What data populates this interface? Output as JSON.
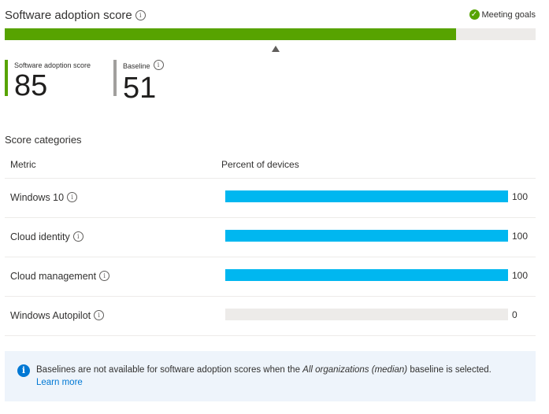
{
  "header": {
    "title": "Software adoption score",
    "status_label": "Meeting goals",
    "score_percent": 85,
    "baseline_percent": 51
  },
  "kpis": {
    "score_label": "Software adoption score",
    "score_value": "85",
    "baseline_label": "Baseline",
    "baseline_value": "51"
  },
  "categories": {
    "title": "Score categories",
    "columns": [
      "Metric",
      "Percent of devices"
    ],
    "rows": [
      {
        "metric": "Windows 10",
        "percent": 100,
        "percent_label": "100"
      },
      {
        "metric": "Cloud identity",
        "percent": 100,
        "percent_label": "100"
      },
      {
        "metric": "Cloud management",
        "percent": 100,
        "percent_label": "100"
      },
      {
        "metric": "Windows Autopilot",
        "percent": 0,
        "percent_label": "0"
      }
    ]
  },
  "banner": {
    "text_before": "Baselines are not available for software adoption scores when the ",
    "text_italic": "All organizations (median)",
    "text_after": " baseline is selected.",
    "link": "Learn more"
  },
  "colors": {
    "score_fill": "#57a300",
    "bar_fill": "#00b7f0",
    "track": "#edebe9",
    "link": "#0078d4"
  }
}
